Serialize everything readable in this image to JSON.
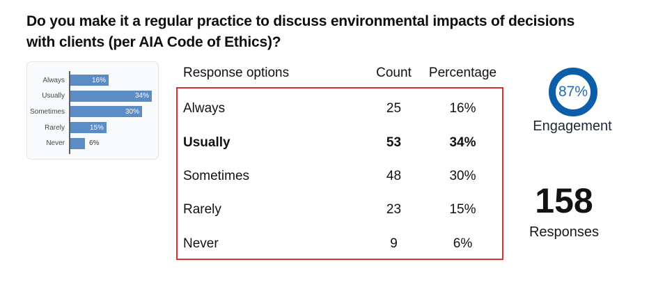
{
  "title": "Do you make it a regular practice to discuss environmental impacts of decisions with clients (per AIA Code of Ethics)?",
  "colors": {
    "bar_blue": "#5b8cc5",
    "ring_blue": "#0d5ea8",
    "percent_text_blue": "#1e6bb8",
    "highlight_red_border": "#df3030",
    "chart_card_bg": "#f8fafb"
  },
  "chart_data": {
    "type": "bar",
    "orientation": "horizontal",
    "title": "",
    "xlabel": "",
    "ylabel": "",
    "categories": [
      "Always",
      "Usually",
      "Sometimes",
      "Rarely",
      "Never"
    ],
    "values": [
      16,
      34,
      30,
      15,
      6
    ],
    "value_labels": [
      "16%",
      "34%",
      "30%",
      "15%",
      "6%"
    ],
    "xlim": [
      0,
      36
    ],
    "grid": "off",
    "legend": "none"
  },
  "table": {
    "headers": [
      "Response options",
      "Count",
      "Percentage"
    ],
    "rows": [
      {
        "label": "Always",
        "count": "25",
        "percentage": "16%"
      },
      {
        "label": "Usually",
        "count": "53",
        "percentage": "34%"
      },
      {
        "label": "Sometimes",
        "count": "48",
        "percentage": "30%"
      },
      {
        "label": "Rarely",
        "count": "23",
        "percentage": "15%"
      },
      {
        "label": "Never",
        "count": "9",
        "percentage": "6%"
      }
    ],
    "emphasized_row": "Usually"
  },
  "stats": {
    "engagement_value": "87%",
    "engagement_label": "Engagement",
    "responses_value": "158",
    "responses_label": "Responses"
  }
}
